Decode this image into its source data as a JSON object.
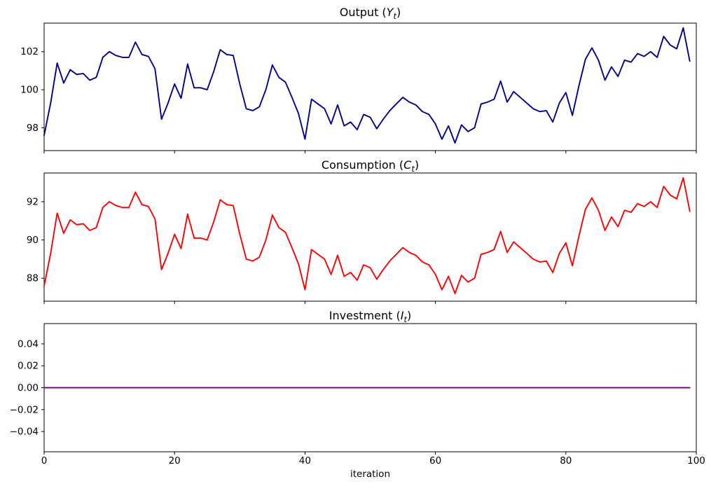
{
  "xlabel": "iteration",
  "colors": {
    "output_line": "#00008B",
    "consumption_line": "#FF0000",
    "investment_line": "#800080",
    "axis": "#000000",
    "background": "#FFFFFF"
  },
  "chart_data": [
    {
      "type": "line",
      "title": {
        "prefix": "Output (",
        "symbol": "Y",
        "subscript": "t",
        "suffix": ")"
      },
      "line_color": "#00008B",
      "x_start": 0,
      "x_step": 1,
      "xlim": [
        0,
        100
      ],
      "ylim": [
        96.8,
        103.5
      ],
      "yticks": [
        {
          "value": 98,
          "label": "98"
        },
        {
          "value": 100,
          "label": "100"
        },
        {
          "value": 102,
          "label": "102"
        }
      ],
      "xticks": [
        {
          "value": 0,
          "label": "0"
        },
        {
          "value": 20,
          "label": "20"
        },
        {
          "value": 40,
          "label": "40"
        },
        {
          "value": 60,
          "label": "60"
        },
        {
          "value": 80,
          "label": "80"
        },
        {
          "value": 100,
          "label": "100"
        }
      ],
      "show_xtick_labels": false,
      "grid": false,
      "legend": null,
      "values": [
        97.6,
        99.3,
        101.4,
        100.35,
        101.05,
        100.8,
        100.85,
        100.5,
        100.65,
        101.7,
        102.0,
        101.8,
        101.7,
        101.7,
        102.5,
        101.85,
        101.75,
        101.1,
        98.45,
        99.3,
        100.3,
        99.55,
        101.35,
        100.1,
        100.1,
        100.0,
        100.95,
        102.1,
        101.85,
        101.8,
        100.3,
        99.0,
        98.9,
        99.1,
        100.0,
        101.3,
        100.65,
        100.4,
        99.6,
        98.75,
        97.4,
        99.5,
        99.25,
        99.0,
        98.2,
        99.2,
        98.1,
        98.3,
        97.9,
        98.7,
        98.55,
        97.95,
        98.45,
        98.9,
        99.25,
        99.6,
        99.35,
        99.2,
        98.85,
        98.7,
        98.2,
        97.4,
        98.1,
        97.2,
        98.15,
        97.8,
        98.0,
        99.25,
        99.35,
        99.5,
        100.45,
        99.35,
        99.9,
        99.6,
        99.3,
        99.0,
        98.85,
        98.9,
        98.3,
        99.3,
        99.85,
        98.65,
        100.2,
        101.6,
        102.2,
        101.55,
        100.5,
        101.2,
        100.7,
        101.55,
        101.45,
        101.9,
        101.75,
        102.0,
        101.7,
        102.8,
        102.35,
        102.15,
        103.25,
        101.5
      ]
    },
    {
      "type": "line",
      "title": {
        "prefix": "Consumption (",
        "symbol": "C",
        "subscript": "t",
        "suffix": ")"
      },
      "line_color": "#FF0000",
      "x_start": 0,
      "x_step": 1,
      "xlim": [
        0,
        100
      ],
      "ylim": [
        86.8,
        93.5
      ],
      "yticks": [
        {
          "value": 88,
          "label": "88"
        },
        {
          "value": 90,
          "label": "90"
        },
        {
          "value": 92,
          "label": "92"
        }
      ],
      "xticks": [
        {
          "value": 0,
          "label": "0"
        },
        {
          "value": 20,
          "label": "20"
        },
        {
          "value": 40,
          "label": "40"
        },
        {
          "value": 60,
          "label": "60"
        },
        {
          "value": 80,
          "label": "80"
        },
        {
          "value": 100,
          "label": "100"
        }
      ],
      "show_xtick_labels": false,
      "grid": false,
      "legend": null,
      "values": [
        87.6,
        89.3,
        91.4,
        90.35,
        91.05,
        90.8,
        90.85,
        90.5,
        90.65,
        91.7,
        92.0,
        91.8,
        91.7,
        91.7,
        92.5,
        91.85,
        91.75,
        91.1,
        88.45,
        89.3,
        90.3,
        89.55,
        91.35,
        90.1,
        90.1,
        90.0,
        90.95,
        92.1,
        91.85,
        91.8,
        90.3,
        89.0,
        88.9,
        89.1,
        90.0,
        91.3,
        90.65,
        90.4,
        89.6,
        88.75,
        87.4,
        89.5,
        89.25,
        89.0,
        88.2,
        89.2,
        88.1,
        88.3,
        87.9,
        88.7,
        88.55,
        87.95,
        88.45,
        88.9,
        89.25,
        89.6,
        89.35,
        89.2,
        88.85,
        88.7,
        88.2,
        87.4,
        88.1,
        87.2,
        88.15,
        87.8,
        88.0,
        89.25,
        89.35,
        89.5,
        90.45,
        89.35,
        89.9,
        89.6,
        89.3,
        89.0,
        88.85,
        88.9,
        88.3,
        89.3,
        89.85,
        88.65,
        90.2,
        91.6,
        92.2,
        91.55,
        90.5,
        91.2,
        90.7,
        91.55,
        91.45,
        91.9,
        91.75,
        92.0,
        91.7,
        92.8,
        92.35,
        92.15,
        93.25,
        91.5
      ]
    },
    {
      "type": "line",
      "title": {
        "prefix": "Investment (",
        "symbol": "I",
        "subscript": "t",
        "suffix": ")"
      },
      "line_color": "#800080",
      "x_start": 0,
      "x_step": 1,
      "xlim": [
        0,
        100
      ],
      "ylim": [
        -0.0585,
        0.0585
      ],
      "yticks": [
        {
          "value": 0.04,
          "label": "0.04"
        },
        {
          "value": 0.02,
          "label": "0.02"
        },
        {
          "value": 0.0,
          "label": "0.00"
        },
        {
          "value": -0.02,
          "label": "−0.02"
        },
        {
          "value": -0.04,
          "label": "−0.04"
        }
      ],
      "xticks": [
        {
          "value": 0,
          "label": "0"
        },
        {
          "value": 20,
          "label": "20"
        },
        {
          "value": 40,
          "label": "40"
        },
        {
          "value": 60,
          "label": "60"
        },
        {
          "value": 80,
          "label": "80"
        },
        {
          "value": 100,
          "label": "100"
        }
      ],
      "show_xtick_labels": true,
      "grid": false,
      "legend": null,
      "values": {
        "constant": 0.0,
        "count": 100
      }
    }
  ]
}
